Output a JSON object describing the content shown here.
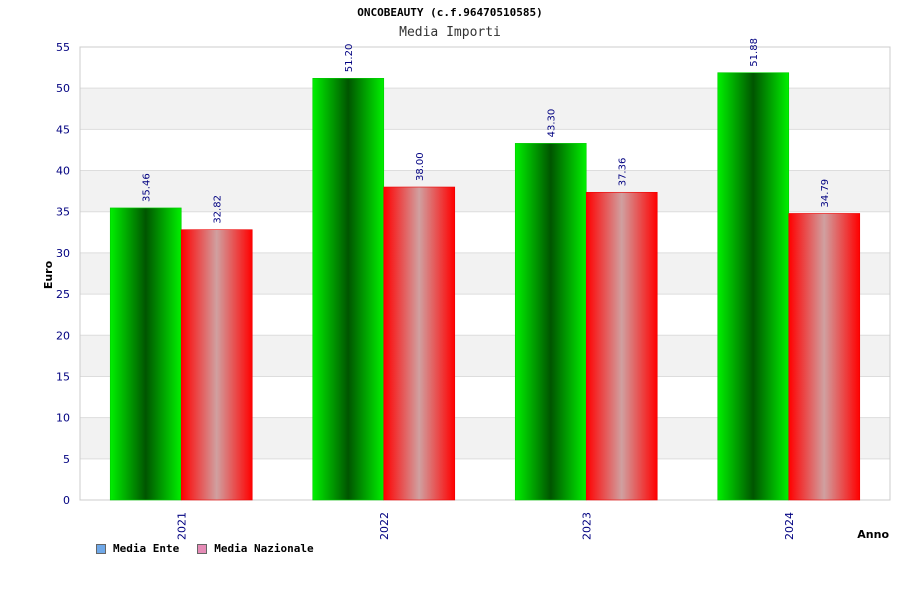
{
  "chart_data": {
    "type": "bar",
    "title": "ONCOBEAUTY (c.f.96470510585)",
    "subtitle": "Media Importi",
    "xlabel": "Anno",
    "ylabel": "Euro",
    "ylim": [
      0,
      55
    ],
    "yticks": [
      0,
      5,
      10,
      15,
      20,
      25,
      30,
      35,
      40,
      45,
      50,
      55
    ],
    "categories": [
      "2021",
      "2022",
      "2023",
      "2024"
    ],
    "series": [
      {
        "name": "Media Ente",
        "values": [
          35.46,
          51.2,
          43.3,
          51.88
        ],
        "labels": [
          "35.46",
          "51.20",
          "43.30",
          "51.88"
        ],
        "color": "#00dd00",
        "legend_color": "#6fa8e8"
      },
      {
        "name": "Media Nazionale",
        "values": [
          32.82,
          38.0,
          37.36,
          34.79
        ],
        "labels": [
          "32.82",
          "38.00",
          "37.36",
          "34.79"
        ],
        "color": "#ff0000",
        "legend_color": "#e58bb6"
      }
    ],
    "grid": true,
    "legend_position": "bottom-left"
  },
  "colors": {
    "tick_label": "#000080",
    "value_label": "#000080",
    "band": "#f2f2f2",
    "grid": "#dddddd"
  }
}
